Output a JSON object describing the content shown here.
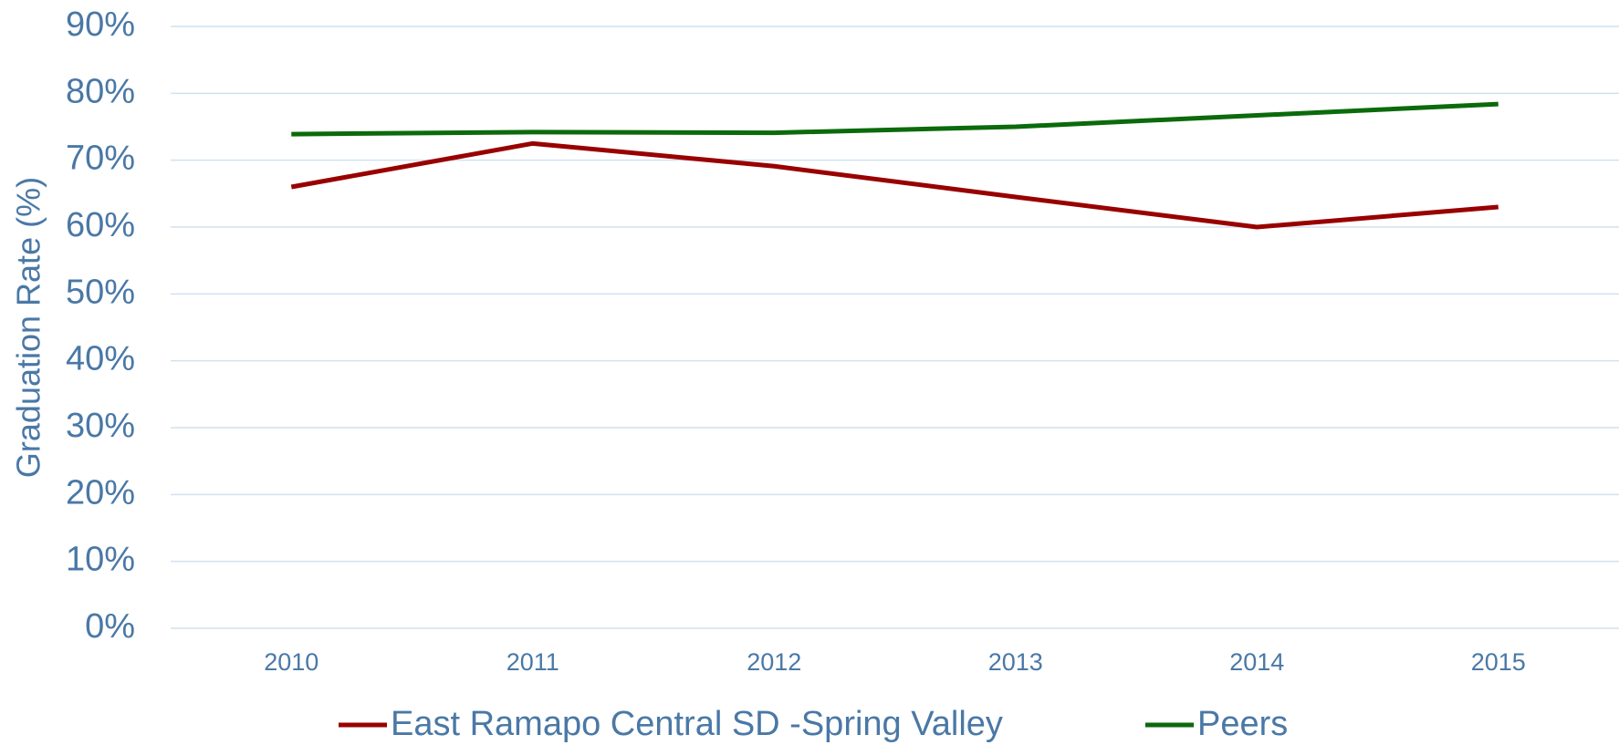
{
  "chart_data": {
    "type": "line",
    "y_label": "Graduation Rate (%)",
    "categories": [
      "2010",
      "2011",
      "2012",
      "2013",
      "2014",
      "2015"
    ],
    "series": [
      {
        "name": "East Ramapo Central SD -Spring Valley",
        "color": "#990000",
        "values": [
          66.0,
          72.5,
          69.1,
          64.5,
          60.0,
          63.0
        ]
      },
      {
        "name": "Peers",
        "color": "#0b6a0b",
        "values": [
          73.9,
          74.2,
          74.1,
          75.0,
          76.7,
          78.4
        ]
      }
    ],
    "ylim": [
      0,
      90
    ],
    "yticks": [
      {
        "value": 0,
        "label": "0%"
      },
      {
        "value": 10,
        "label": "10%"
      },
      {
        "value": 20,
        "label": "20%"
      },
      {
        "value": 30,
        "label": "30%"
      },
      {
        "value": 40,
        "label": "40%"
      },
      {
        "value": 50,
        "label": "50%"
      },
      {
        "value": 60,
        "label": "60%"
      },
      {
        "value": 70,
        "label": "70%"
      },
      {
        "value": 80,
        "label": "80%"
      },
      {
        "value": 90,
        "label": "90%"
      }
    ],
    "grid": true,
    "legend": "bottom"
  }
}
